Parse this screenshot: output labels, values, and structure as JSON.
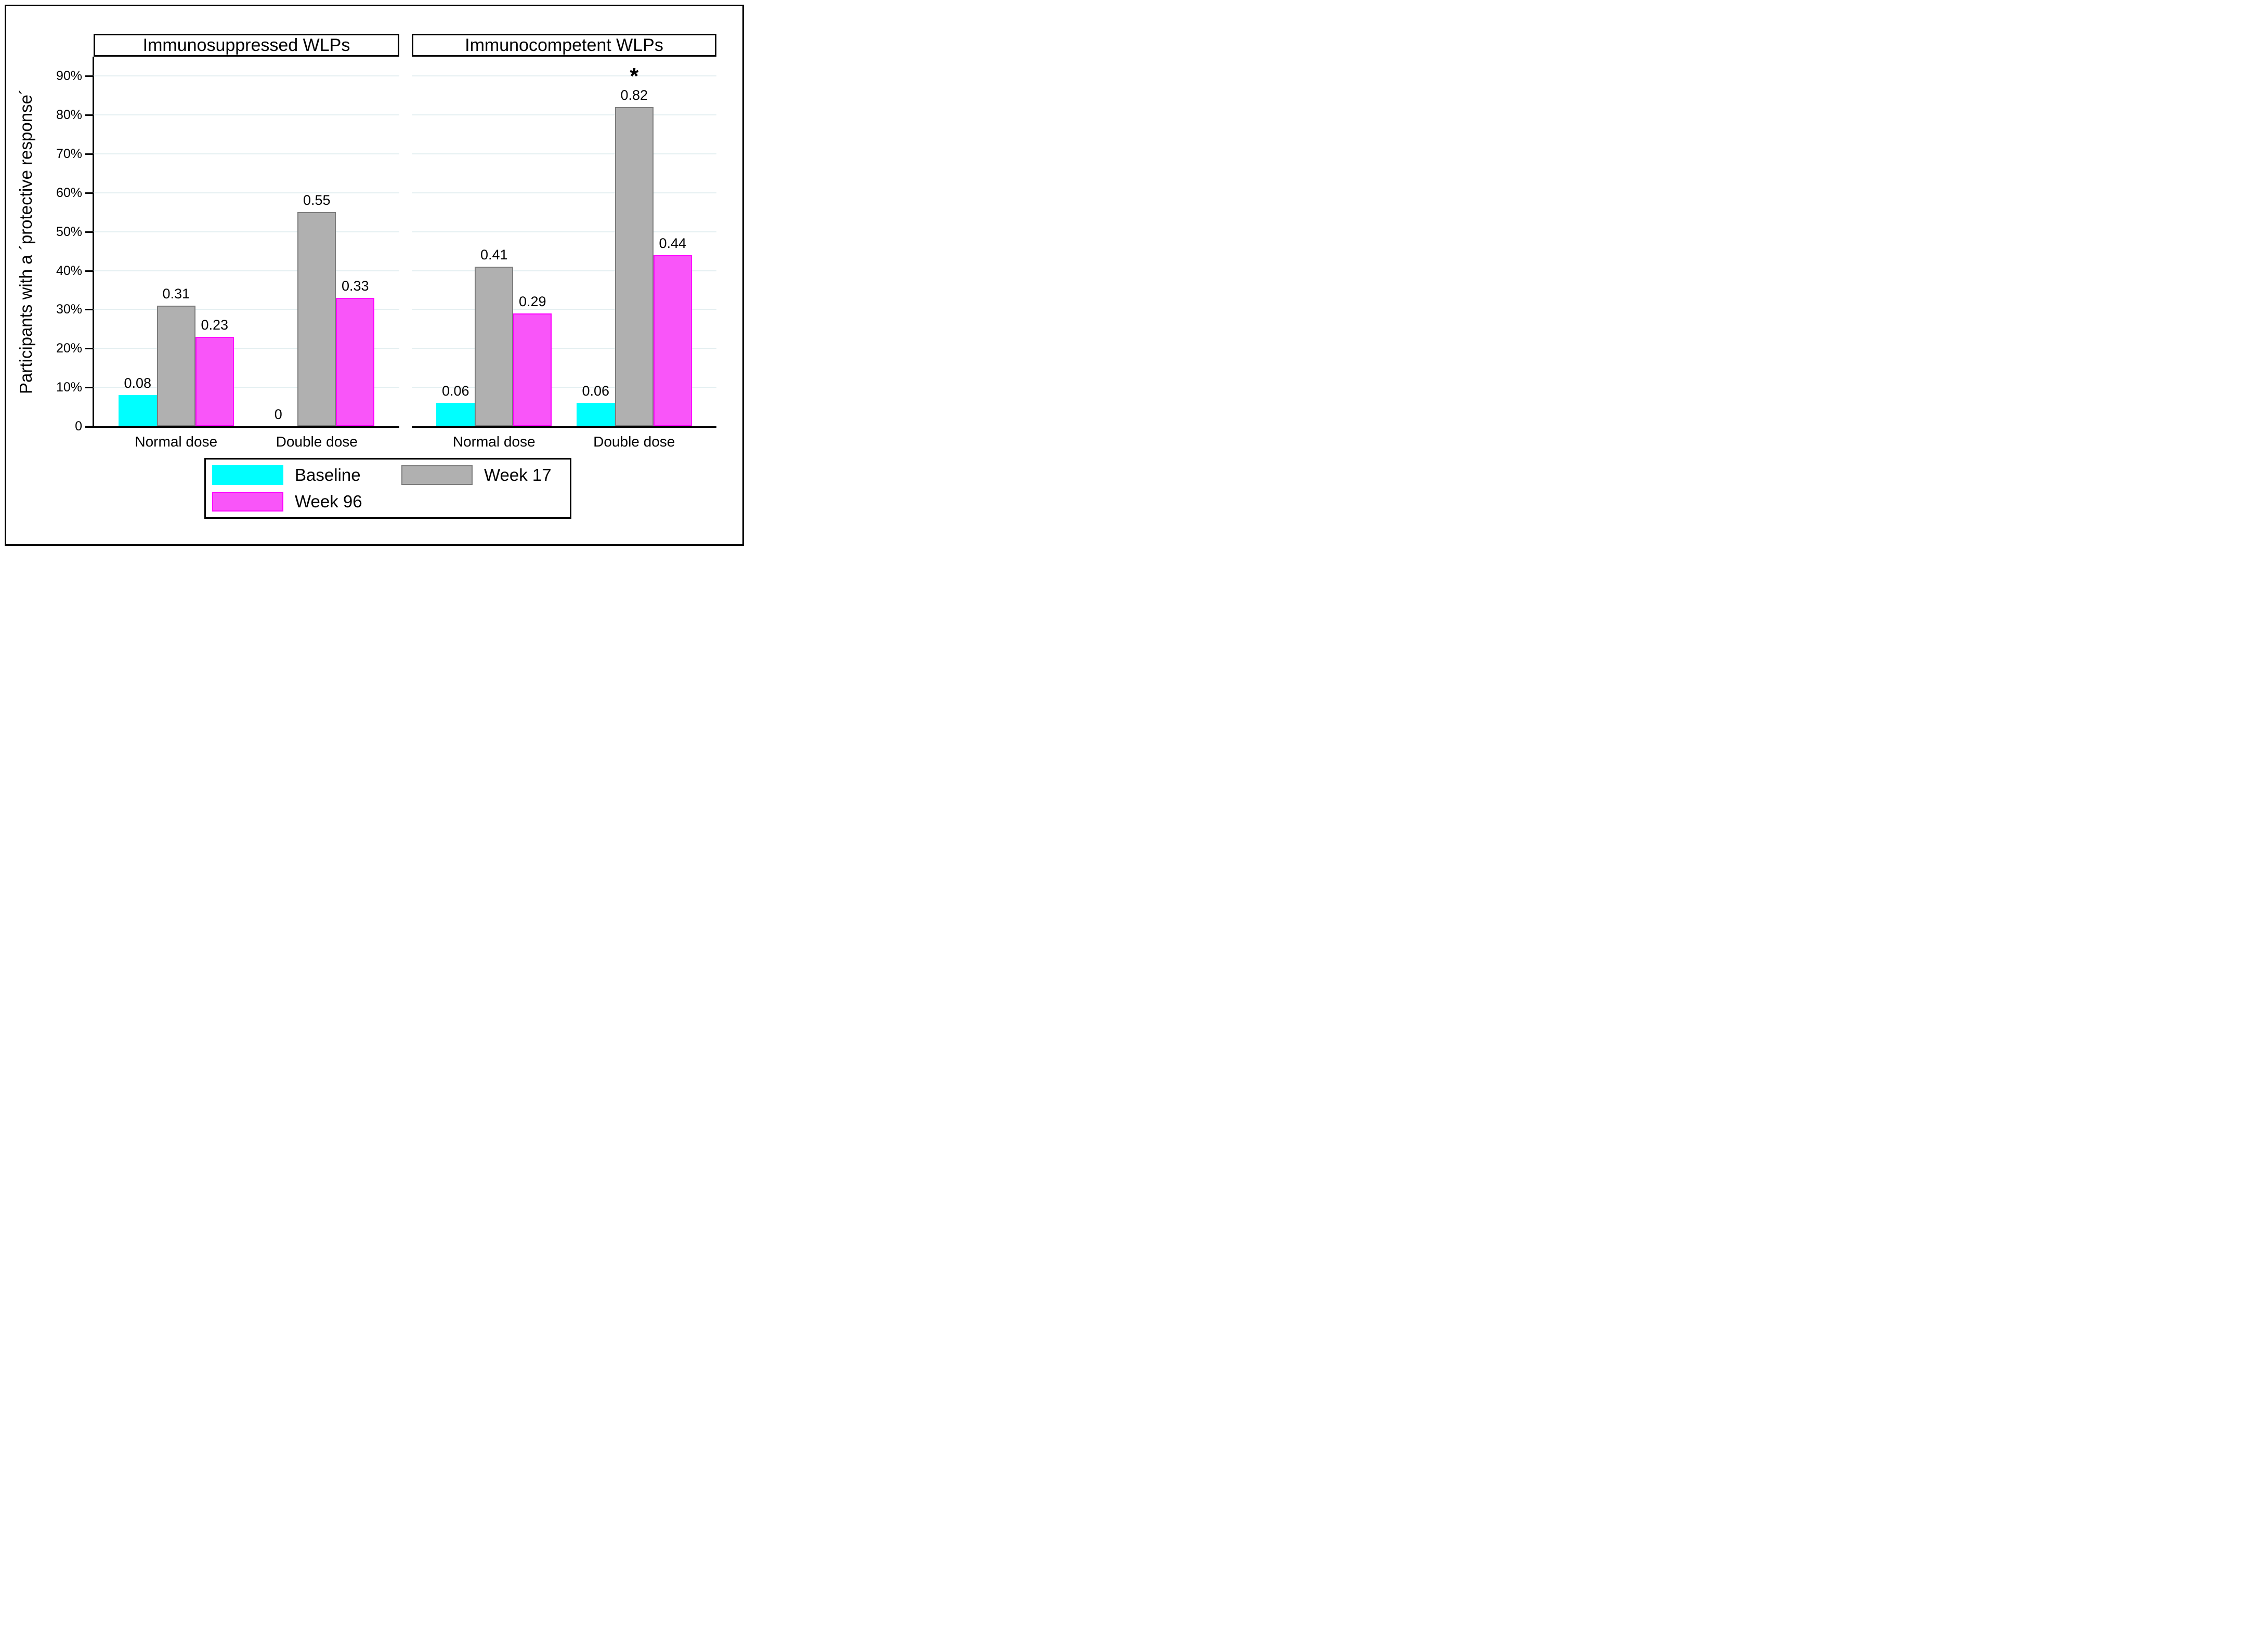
{
  "figure": {
    "y_axis_title": "Participants with a ´protective response´"
  },
  "chart_data": {
    "type": "bar",
    "ylabel": "Participants with a ´protective response´",
    "ylim": [
      0,
      0.95
    ],
    "grid": true,
    "legend_position": "bottom",
    "ytick_values": [
      0,
      0.1,
      0.2,
      0.3,
      0.4,
      0.5,
      0.6,
      0.7,
      0.8,
      0.9
    ],
    "ytick_labels": [
      "0",
      "10%",
      "20%",
      "30%",
      "40%",
      "50%",
      "60%",
      "70%",
      "80%",
      "90%"
    ],
    "colors": {
      "grid": "#e4eff1",
      "axis": "#000000",
      "text": "#000000"
    },
    "series": [
      {
        "name": "Baseline",
        "fill": "#00ffff",
        "border": "#00ffff"
      },
      {
        "name": "Week 17",
        "fill": "#b0b0b0",
        "border": "#7d7d7d"
      },
      {
        "name": "Week 96",
        "fill": "#f955f9",
        "border": "#ff00ff"
      }
    ],
    "panels": [
      {
        "title": "Immunosuppressed WLPs",
        "categories": [
          "Normal dose",
          "Double dose"
        ],
        "groups": [
          {
            "category": "Normal dose",
            "values": [
              0.08,
              0.31,
              0.23
            ],
            "labels": [
              "0.08",
              "0.31",
              "0.23"
            ],
            "annotations": [
              "",
              "",
              ""
            ]
          },
          {
            "category": "Double dose",
            "values": [
              0,
              0.55,
              0.33
            ],
            "labels": [
              "0",
              "0.55",
              "0.33"
            ],
            "annotations": [
              "",
              "",
              ""
            ]
          }
        ]
      },
      {
        "title": "Immunocompetent WLPs",
        "categories": [
          "Normal dose",
          "Double dose"
        ],
        "groups": [
          {
            "category": "Normal dose",
            "values": [
              0.06,
              0.41,
              0.29
            ],
            "labels": [
              "0.06",
              "0.41",
              "0.29"
            ],
            "annotations": [
              "",
              "",
              ""
            ]
          },
          {
            "category": "Double dose",
            "values": [
              0.06,
              0.82,
              0.44
            ],
            "labels": [
              "0.06",
              "0.82",
              "0.44"
            ],
            "annotations": [
              "",
              "*",
              ""
            ]
          }
        ]
      }
    ],
    "legend": {
      "entries": [
        "Baseline",
        "Week 17",
        "Week 96"
      ]
    }
  }
}
